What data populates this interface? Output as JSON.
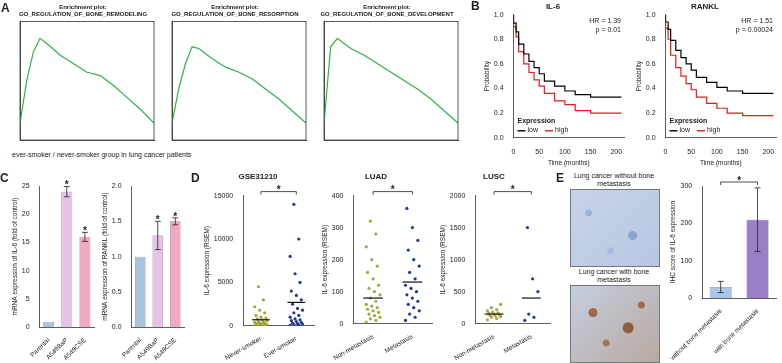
{
  "chart_data": [
    {
      "panel": "A",
      "caption": "ever-smoker / never-smoker group in lung cancer patients",
      "type": "line",
      "title": "Enrichment plot: GO_REGULATION_OF_BONE_REMODELING",
      "x": [
        0,
        1000,
        2000,
        3000,
        4000,
        6000,
        8000,
        10000,
        12000,
        14000,
        16000,
        18000,
        20000
      ],
      "values": [
        0,
        0.25,
        0.42,
        0.5,
        0.47,
        0.4,
        0.35,
        0.3,
        0.28,
        0.22,
        0.15,
        0.08,
        0
      ],
      "color": "#2db34a",
      "xlim": [
        0,
        20000
      ],
      "ylim": [
        -0.1,
        0.6
      ],
      "tick_labels": false,
      "grid": false
    },
    {
      "type": "line",
      "title": "Enrichment plot: GO_REGULATION_OF_BONE_RESORPTION",
      "x": [
        0,
        1000,
        2000,
        3000,
        4000,
        6000,
        8000,
        10000,
        12000,
        14000,
        16000,
        18000,
        20000
      ],
      "values": [
        0,
        0.2,
        0.35,
        0.45,
        0.44,
        0.38,
        0.33,
        0.3,
        0.26,
        0.2,
        0.14,
        0.07,
        0
      ],
      "color": "#2db34a",
      "xlim": [
        0,
        20000
      ],
      "ylim": [
        -0.1,
        0.6
      ],
      "tick_labels": false,
      "grid": false
    },
    {
      "type": "line",
      "title": "Enrichment plot: GO_REGULATION_OF_BONE_DEVELOPMENT",
      "x": [
        0,
        1000,
        2000,
        3000,
        4000,
        6000,
        8000,
        10000,
        12000,
        14000,
        16000,
        18000,
        20000
      ],
      "values": [
        0,
        0.45,
        0.5,
        0.47,
        0.44,
        0.4,
        0.35,
        0.3,
        0.25,
        0.2,
        0.14,
        0.07,
        0
      ],
      "color": "#2db34a",
      "xlim": [
        0,
        20000
      ],
      "ylim": [
        -0.1,
        0.6
      ],
      "tick_labels": false,
      "grid": false
    },
    {
      "panel": "B",
      "type": "line",
      "line_style": "step",
      "title": "IL-6",
      "x_label": "Time (months)",
      "y_label": "Probability",
      "xlim": [
        0,
        215
      ],
      "xticks": [
        0,
        50,
        100,
        150,
        200
      ],
      "ylim": [
        0,
        1
      ],
      "yticks": [
        {
          "value": 0,
          "label": "0.0"
        },
        0.2,
        0.4,
        0.6,
        0.8,
        {
          "value": 1,
          "label": "1.0"
        }
      ],
      "grid": false,
      "legend": "lower left",
      "legend_title": "Expression",
      "annotations": [
        "HR = 1.39",
        "p = 0.01"
      ],
      "x": [
        0,
        5,
        10,
        20,
        30,
        40,
        50,
        60,
        80,
        100,
        120,
        150,
        180,
        210
      ],
      "series": [
        {
          "name": "low",
          "color": "#000000",
          "values": [
            1,
            0.93,
            0.86,
            0.76,
            0.68,
            0.62,
            0.57,
            0.52,
            0.46,
            0.42,
            0.38,
            0.35,
            0.33,
            0.33
          ]
        },
        {
          "name": "high",
          "color": "#e41a1c",
          "values": [
            1,
            0.9,
            0.82,
            0.7,
            0.6,
            0.53,
            0.47,
            0.42,
            0.36,
            0.3,
            0.27,
            0.22,
            0.2,
            0.2
          ]
        }
      ]
    },
    {
      "type": "line",
      "line_style": "step",
      "title": "RANKL",
      "x_label": "Time (months)",
      "y_label": "Probability",
      "xlim": [
        0,
        215
      ],
      "xticks": [
        0,
        50,
        100,
        150,
        200
      ],
      "ylim": [
        0,
        1
      ],
      "yticks": [
        {
          "value": 0,
          "label": "0.0"
        },
        0.2,
        0.4,
        0.6,
        0.8,
        {
          "value": 1,
          "label": "1.0"
        }
      ],
      "grid": false,
      "legend": "lower left",
      "legend_title": "Expression",
      "annotations": [
        "HR = 1.51",
        "p = 0.00024"
      ],
      "x": [
        0,
        5,
        10,
        20,
        30,
        40,
        50,
        60,
        80,
        100,
        120,
        150,
        180,
        210
      ],
      "series": [
        {
          "name": "low",
          "color": "#000000",
          "values": [
            1,
            0.94,
            0.88,
            0.79,
            0.71,
            0.65,
            0.6,
            0.55,
            0.49,
            0.45,
            0.41,
            0.38,
            0.36,
            0.36
          ]
        },
        {
          "name": "high",
          "color": "#e41a1c",
          "values": [
            1,
            0.89,
            0.8,
            0.67,
            0.57,
            0.5,
            0.44,
            0.39,
            0.33,
            0.28,
            0.24,
            0.2,
            0.18,
            0.18
          ]
        }
      ]
    },
    {
      "panel": "C",
      "type": "bar",
      "y_label": "mRNA expression of IL-6 (fold of control)",
      "categories": [
        "Parental",
        "A549BaP",
        "A549CSE"
      ],
      "values": [
        1,
        24,
        16
      ],
      "errors": [
        0,
        0.9,
        0.8
      ],
      "significance": [
        null,
        "*",
        "*"
      ],
      "colors": [
        "#a8c4e0",
        "#e6c3e6",
        "#f2a7c3"
      ],
      "ylim": [
        0,
        25
      ],
      "yticks": [
        0,
        5,
        10,
        15,
        20,
        25
      ],
      "grid": false
    },
    {
      "type": "bar",
      "y_label": "mRNA expression of RANKL (fold of control)",
      "categories": [
        "Parental",
        "A549BaP",
        "A549CSE"
      ],
      "values": [
        1,
        1.3,
        1.5
      ],
      "errors": [
        0,
        0.2,
        0.05
      ],
      "significance": [
        null,
        "*",
        "*"
      ],
      "colors": [
        "#a8c4e0",
        "#e6c3e6",
        "#f2a7c3"
      ],
      "ylim": [
        0,
        2
      ],
      "yticks": [
        {
          "value": 0,
          "label": "0.0"
        },
        0.5,
        {
          "value": 1,
          "label": "1.0"
        },
        1.5,
        {
          "value": 2,
          "label": "2.0"
        }
      ],
      "grid": false
    },
    {
      "panel": "D",
      "type": "scatter",
      "title": "GSE31210",
      "y_label": "IL-6 expression (RSEM)",
      "categories": [
        "Never-smoker",
        "Ever-smoker"
      ],
      "points": [
        [
          50,
          80,
          100,
          120,
          150,
          180,
          200,
          220,
          250,
          300,
          350,
          400,
          450,
          500,
          600,
          700,
          800,
          900,
          1000,
          1200,
          1500,
          1800,
          2200,
          3000,
          4500
        ],
        [
          60,
          100,
          150,
          200,
          250,
          300,
          400,
          500,
          600,
          700,
          800,
          1000,
          1200,
          1500,
          1800,
          2000,
          2500,
          3000,
          3500,
          4000,
          5000,
          6000,
          8000,
          10000,
          14000
        ]
      ],
      "means": [
        700,
        2700
      ],
      "colors": [
        "#a3a83c",
        "#1f3a93"
      ],
      "ylim": [
        0,
        15000
      ],
      "yticks": [
        0,
        5000,
        10000,
        15000
      ],
      "significance": "*",
      "grid": false
    },
    {
      "type": "scatter",
      "title": "LUAD",
      "y_label": "IL-6 expression (RSEM)",
      "categories": [
        "Non-metastasis",
        "Metastasis"
      ],
      "points": [
        [
          5,
          10,
          15,
          20,
          25,
          30,
          35,
          40,
          45,
          50,
          55,
          60,
          70,
          80,
          90,
          100,
          110,
          120,
          140,
          160,
          180,
          200,
          240,
          280,
          320
        ],
        [
          10,
          20,
          30,
          40,
          50,
          60,
          70,
          80,
          90,
          100,
          110,
          120,
          140,
          160,
          180,
          200,
          230,
          260,
          300,
          360
        ]
      ],
      "means": [
        80,
        130
      ],
      "colors": [
        "#a3a83c",
        "#1f3a93"
      ],
      "ylim": [
        0,
        400
      ],
      "yticks": [
        0,
        100,
        200,
        300,
        400
      ],
      "significance": "*",
      "grid": false
    },
    {
      "type": "scatter",
      "title": "LUSC",
      "y_label": "IL-6 expression (RSEM)",
      "categories": [
        "Non-metastasis",
        "Metastasis"
      ],
      "points": [
        [
          60,
          80,
          100,
          110,
          120,
          130,
          140,
          150,
          160,
          170,
          180,
          200,
          220,
          250,
          300
        ],
        [
          50,
          100,
          150,
          500,
          700,
          1500
        ]
      ],
      "means": [
        150,
        400
      ],
      "colors": [
        "#a3a83c",
        "#1f3a93"
      ],
      "ylim": [
        0,
        2000
      ],
      "yticks": [
        0,
        500,
        1000,
        1500,
        2000
      ],
      "significance": "*",
      "grid": false
    },
    {
      "type": "bar",
      "y_label": "IHC score of IL-6 expression",
      "categories": [
        "without bone metastasis",
        "with bone metastasis"
      ],
      "values": [
        30,
        210
      ],
      "errors": [
        15,
        85
      ],
      "significance": "*",
      "colors": [
        "#a9c6e8",
        "#9b7fc4"
      ],
      "ylim": [
        0,
        300
      ],
      "yticks": [
        0,
        100,
        200,
        300
      ],
      "grid": false
    }
  ],
  "images": {
    "panel": "E",
    "labels": [
      "Lung cancer without bone metastasis",
      "Lung cancer with bone metastasis"
    ]
  }
}
